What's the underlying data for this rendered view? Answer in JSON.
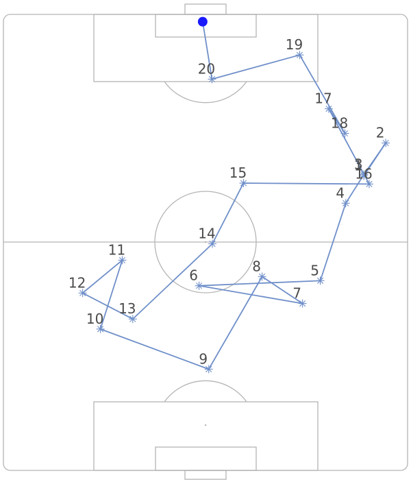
{
  "chart_data": {
    "type": "scatter",
    "title": "",
    "xlabel": "",
    "ylabel": "",
    "xlim": [
      0,
      100
    ],
    "ylim": [
      0,
      100
    ],
    "grid": false,
    "start_marker": {
      "x": 49.3,
      "y": 98.4,
      "color": "#1a1aff"
    },
    "line_color": "#6f8fc9",
    "points": [
      {
        "label": "1",
        "x": 89.2,
        "y": 64.6
      },
      {
        "label": "2",
        "x": 94.6,
        "y": 71.8
      },
      {
        "label": "3",
        "x": 89.2,
        "y": 64.9
      },
      {
        "label": "4",
        "x": 84.7,
        "y": 58.6
      },
      {
        "label": "5",
        "x": 78.4,
        "y": 41.6
      },
      {
        "label": "6",
        "x": 48.4,
        "y": 40.5
      },
      {
        "label": "7",
        "x": 74.0,
        "y": 36.6
      },
      {
        "label": "8",
        "x": 64.0,
        "y": 42.5
      },
      {
        "label": "9",
        "x": 50.8,
        "y": 22.2
      },
      {
        "label": "10",
        "x": 24.0,
        "y": 31.0
      },
      {
        "label": "11",
        "x": 29.4,
        "y": 46.1
      },
      {
        "label": "12",
        "x": 19.6,
        "y": 38.9
      },
      {
        "label": "13",
        "x": 32.0,
        "y": 33.2
      },
      {
        "label": "14",
        "x": 51.7,
        "y": 49.7
      },
      {
        "label": "15",
        "x": 59.4,
        "y": 63.0
      },
      {
        "label": "16",
        "x": 90.5,
        "y": 62.8
      },
      {
        "label": "17",
        "x": 80.5,
        "y": 79.3
      },
      {
        "label": "18",
        "x": 84.5,
        "y": 73.9
      },
      {
        "label": "19",
        "x": 73.3,
        "y": 91.1
      },
      {
        "label": "20",
        "x": 51.6,
        "y": 85.8
      }
    ]
  }
}
